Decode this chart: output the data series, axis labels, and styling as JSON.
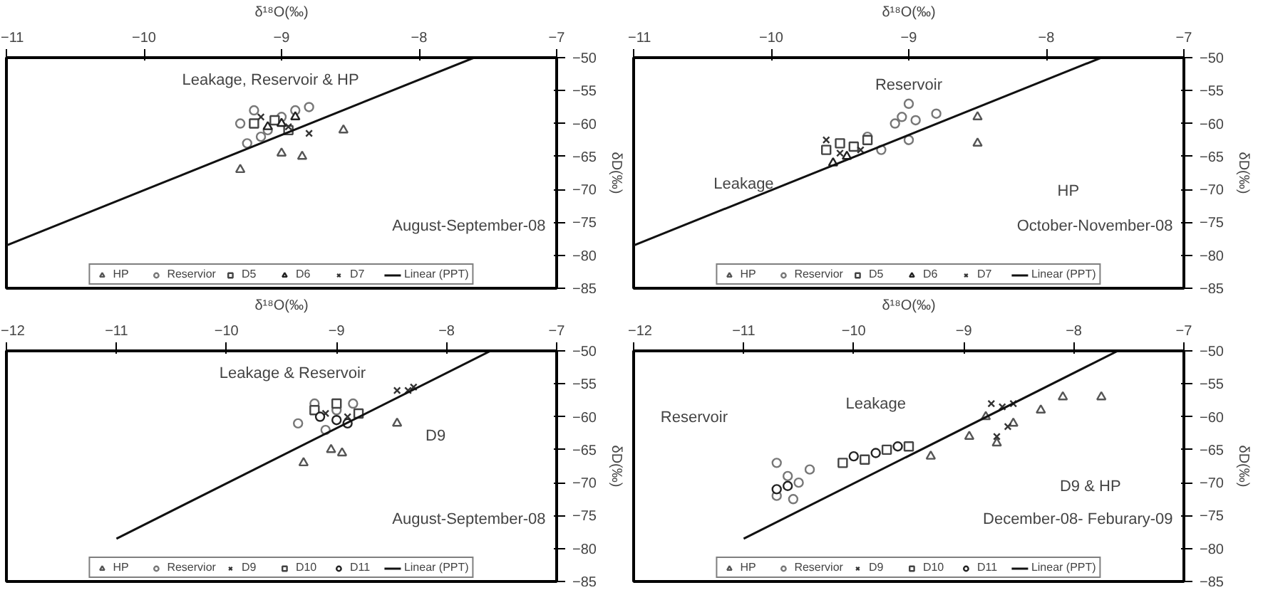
{
  "chart_data": [
    {
      "type": "scatter",
      "xlabel": "δ¹⁸O(‰)",
      "ylabel": "δD(‰)",
      "xlim": [
        -11,
        -7
      ],
      "xticks": [
        -11,
        -10,
        -9,
        -8,
        -7
      ],
      "ylim": [
        -85,
        -50
      ],
      "yticks": [
        -85,
        -80,
        -75,
        -70,
        -65,
        -60,
        -55,
        -50
      ],
      "grid": false,
      "legend": "bottom",
      "annotations": [
        "Leakage, Reservoir & HP",
        "August-September-08"
      ],
      "series": [
        {
          "name": "HP",
          "color": "#555555",
          "marker": "triangle",
          "x": [
            -9.3,
            -9.0,
            -8.85,
            -8.55
          ],
          "values": [
            -67,
            -64.5,
            -65,
            -61
          ]
        },
        {
          "name": "Reservior",
          "color": "#777777",
          "marker": "circle",
          "x": [
            -9.3,
            -9.2,
            -9.1,
            -9.0,
            -8.9,
            -8.8,
            -9.15,
            -9.25
          ],
          "values": [
            -60,
            -58,
            -61,
            -59,
            -58,
            -57.5,
            -62,
            -63
          ]
        },
        {
          "name": "D5",
          "color": "#444444",
          "marker": "square",
          "x": [
            -9.2,
            -9.05,
            -8.95
          ],
          "values": [
            -60,
            -59.5,
            -61
          ]
        },
        {
          "name": "D6",
          "color": "#222222",
          "marker": "triangle",
          "x": [
            -9.1,
            -9.0,
            -8.9
          ],
          "values": [
            -60.5,
            -60,
            -59
          ]
        },
        {
          "name": "D7",
          "color": "#333333",
          "marker": "cross",
          "x": [
            -9.15,
            -8.95,
            -8.8
          ],
          "values": [
            -59,
            -60.5,
            -61.5
          ]
        },
        {
          "name": "Linear (PPT)",
          "type": "line",
          "color": "#111111",
          "marker": "none",
          "x": [
            -11,
            -7.6
          ],
          "values": [
            -78.5,
            -50
          ]
        }
      ]
    },
    {
      "type": "scatter",
      "xlabel": "δ¹⁸O(‰)",
      "ylabel": "δD(‰)",
      "xlim": [
        -11,
        -7
      ],
      "xticks": [
        -11,
        -10,
        -9,
        -8,
        -7
      ],
      "ylim": [
        -85,
        -50
      ],
      "yticks": [
        -85,
        -80,
        -75,
        -70,
        -65,
        -60,
        -55,
        -50
      ],
      "grid": false,
      "legend": "bottom",
      "annotations": [
        "Reservoir",
        "Leakage",
        "HP",
        "October-November-08"
      ],
      "series": [
        {
          "name": "HP",
          "color": "#555555",
          "marker": "triangle",
          "x": [
            -8.5,
            -8.5
          ],
          "values": [
            -59,
            -63
          ]
        },
        {
          "name": "Reservior",
          "color": "#777777",
          "marker": "circle",
          "x": [
            -9.0,
            -9.05,
            -8.95,
            -9.1,
            -9.0,
            -8.8,
            -9.3,
            -9.2
          ],
          "values": [
            -57,
            -59,
            -59.5,
            -60,
            -62.5,
            -58.5,
            -62,
            -64
          ]
        },
        {
          "name": "D5",
          "color": "#444444",
          "marker": "square",
          "x": [
            -9.6,
            -9.5,
            -9.4,
            -9.3
          ],
          "values": [
            -64,
            -63,
            -63.5,
            -62.5
          ]
        },
        {
          "name": "D6",
          "color": "#222222",
          "marker": "triangle",
          "x": [
            -9.55,
            -9.45
          ],
          "values": [
            -66,
            -65
          ]
        },
        {
          "name": "D7",
          "color": "#333333",
          "marker": "cross",
          "x": [
            -9.6,
            -9.5,
            -9.35
          ],
          "values": [
            -62.5,
            -64.5,
            -64
          ]
        },
        {
          "name": "Linear (PPT)",
          "type": "line",
          "color": "#111111",
          "marker": "none",
          "x": [
            -11,
            -7.6
          ],
          "values": [
            -78.5,
            -50
          ]
        }
      ]
    },
    {
      "type": "scatter",
      "xlabel": "δ¹⁸O(‰)",
      "ylabel": "δD(‰)",
      "xlim": [
        -12,
        -7
      ],
      "xticks": [
        -12,
        -11,
        -10,
        -9,
        -8,
        -7
      ],
      "ylim": [
        -85,
        -50
      ],
      "yticks": [
        -85,
        -80,
        -75,
        -70,
        -65,
        -60,
        -55,
        -50
      ],
      "grid": false,
      "legend": "bottom",
      "annotations": [
        "Leakage & Reservoir",
        "D9",
        "August-September-08"
      ],
      "series": [
        {
          "name": "HP",
          "color": "#555555",
          "marker": "triangle",
          "x": [
            -9.3,
            -9.05,
            -8.95,
            -8.45
          ],
          "values": [
            -67,
            -65,
            -65.5,
            -61
          ]
        },
        {
          "name": "Reservior",
          "color": "#777777",
          "marker": "circle",
          "x": [
            -9.35,
            -9.2,
            -9.0,
            -8.85,
            -9.1
          ],
          "values": [
            -61,
            -58,
            -59,
            -58,
            -62
          ]
        },
        {
          "name": "D9",
          "color": "#333333",
          "marker": "cross",
          "x": [
            -8.45,
            -8.35,
            -8.3,
            -8.9,
            -9.1
          ],
          "values": [
            -56,
            -56,
            -55.5,
            -60,
            -59.5
          ]
        },
        {
          "name": "D10",
          "color": "#444444",
          "marker": "square",
          "x": [
            -9.2,
            -9.0,
            -8.8
          ],
          "values": [
            -59,
            -58,
            -59.5
          ]
        },
        {
          "name": "D11",
          "color": "#222222",
          "marker": "circle",
          "x": [
            -9.15,
            -9.0,
            -8.9
          ],
          "values": [
            -60,
            -60.5,
            -61
          ]
        },
        {
          "name": "Linear (PPT)",
          "type": "line",
          "color": "#111111",
          "marker": "none",
          "x": [
            -11,
            -7.6
          ],
          "values": [
            -78.5,
            -50
          ]
        }
      ]
    },
    {
      "type": "scatter",
      "xlabel": "δ¹⁸O(‰)",
      "ylabel": "δD(‰)",
      "xlim": [
        -12,
        -7
      ],
      "xticks": [
        -12,
        -11,
        -10,
        -9,
        -8,
        -7
      ],
      "ylim": [
        -85,
        -50
      ],
      "yticks": [
        -85,
        -80,
        -75,
        -70,
        -65,
        -60,
        -55,
        -50
      ],
      "grid": false,
      "legend": "bottom",
      "annotations": [
        "Reservoir",
        "Leakage",
        "D9 & HP",
        "December-08- Feburary-09"
      ],
      "series": [
        {
          "name": "HP",
          "color": "#555555",
          "marker": "triangle",
          "x": [
            -9.3,
            -8.95,
            -8.8,
            -8.3,
            -8.1,
            -7.75,
            -8.55,
            -8.7
          ],
          "values": [
            -66,
            -63,
            -60,
            -59,
            -57,
            -57,
            -61,
            -64
          ]
        },
        {
          "name": "Reservior",
          "color": "#777777",
          "marker": "circle",
          "x": [
            -10.7,
            -10.6,
            -10.5,
            -10.7,
            -10.55,
            -10.4
          ],
          "values": [
            -67,
            -69,
            -70,
            -72,
            -72.5,
            -68
          ]
        },
        {
          "name": "D9",
          "color": "#333333",
          "marker": "cross",
          "x": [
            -8.75,
            -8.65,
            -8.55,
            -8.7,
            -8.6
          ],
          "values": [
            -58,
            -58.5,
            -58,
            -63,
            -61.5
          ]
        },
        {
          "name": "D10",
          "color": "#444444",
          "marker": "square",
          "x": [
            -9.9,
            -9.7,
            -9.5,
            -10.1
          ],
          "values": [
            -66.5,
            -65,
            -64.5,
            -67
          ]
        },
        {
          "name": "D11",
          "color": "#222222",
          "marker": "circle",
          "x": [
            -10.7,
            -10.6,
            -9.8,
            -9.6,
            -10.0
          ],
          "values": [
            -71,
            -70.5,
            -65.5,
            -64.5,
            -66
          ]
        },
        {
          "name": "Linear (PPT)",
          "type": "line",
          "color": "#111111",
          "marker": "none",
          "x": [
            -11,
            -7.6
          ],
          "values": [
            -78.5,
            -50
          ]
        }
      ]
    }
  ]
}
